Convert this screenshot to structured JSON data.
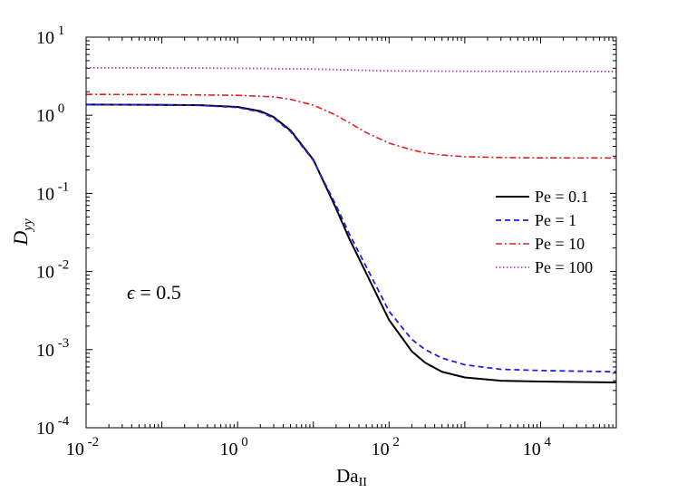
{
  "chart_data": {
    "type": "line",
    "xscale": "log",
    "yscale": "log",
    "xlabel_main": "Da",
    "xlabel_sub": "II",
    "ylabel_main": "D",
    "ylabel_sub": "yy",
    "xlim": [
      0.01,
      100000
    ],
    "ylim": [
      0.0001,
      10
    ],
    "annotation": {
      "symbol": "ϵ",
      "text": " = 0.5"
    },
    "x_ticks": [
      {
        "value": 0.01,
        "base": "10",
        "exp": "-2"
      },
      {
        "value": 1,
        "base": "10",
        "exp": "0"
      },
      {
        "value": 100,
        "base": "10",
        "exp": "2"
      },
      {
        "value": 10000,
        "base": "10",
        "exp": "4"
      }
    ],
    "y_ticks": [
      {
        "value": 0.0001,
        "base": "10",
        "exp": "-4"
      },
      {
        "value": 0.001,
        "base": "10",
        "exp": "-3"
      },
      {
        "value": 0.01,
        "base": "10",
        "exp": "-2"
      },
      {
        "value": 0.1,
        "base": "10",
        "exp": "-1"
      },
      {
        "value": 1,
        "base": "10",
        "exp": "0"
      },
      {
        "value": 10,
        "base": "10",
        "exp": "1"
      }
    ],
    "legend_position": "middle-right",
    "series": [
      {
        "name": "Pe = 0.1",
        "color": "#000000",
        "dash": "solid",
        "x": [
          0.01,
          0.1,
          0.3,
          1,
          2,
          3,
          5,
          10,
          20,
          30,
          50,
          100,
          200,
          300,
          500,
          1000,
          3000,
          10000,
          100000
        ],
        "y": [
          1.37,
          1.36,
          1.35,
          1.28,
          1.13,
          0.95,
          0.64,
          0.27,
          0.064,
          0.026,
          0.0095,
          0.0024,
          0.00095,
          0.00068,
          0.00052,
          0.00044,
          0.0004,
          0.00039,
          0.00038
        ]
      },
      {
        "name": "Pe = 1",
        "color": "#1f1fe0",
        "dash": "dashed",
        "x": [
          0.01,
          0.1,
          0.3,
          1,
          2,
          3,
          5,
          10,
          20,
          30,
          50,
          100,
          200,
          300,
          500,
          1000,
          3000,
          10000,
          100000
        ],
        "y": [
          1.37,
          1.36,
          1.34,
          1.26,
          1.1,
          0.92,
          0.62,
          0.265,
          0.07,
          0.03,
          0.0115,
          0.0031,
          0.00135,
          0.001,
          0.00078,
          0.00064,
          0.00056,
          0.00054,
          0.00052
        ]
      },
      {
        "name": "Pe = 10",
        "color": "#e02020",
        "dash": "dashdot",
        "x": [
          0.01,
          0.1,
          1,
          3,
          5,
          10,
          20,
          30,
          50,
          100,
          200,
          300,
          500,
          1000,
          3000,
          10000,
          100000
        ],
        "y": [
          1.85,
          1.84,
          1.8,
          1.72,
          1.6,
          1.35,
          1.0,
          0.8,
          0.6,
          0.44,
          0.36,
          0.33,
          0.31,
          0.295,
          0.288,
          0.285,
          0.284
        ]
      },
      {
        "name": "Pe = 100",
        "color": "#e020e0",
        "dash": "dotted",
        "x": [
          0.01,
          0.1,
          1,
          10,
          30,
          100,
          1000,
          10000,
          100000
        ],
        "y": [
          4.05,
          4.04,
          4.0,
          3.9,
          3.8,
          3.7,
          3.65,
          3.64,
          3.63
        ]
      }
    ]
  }
}
